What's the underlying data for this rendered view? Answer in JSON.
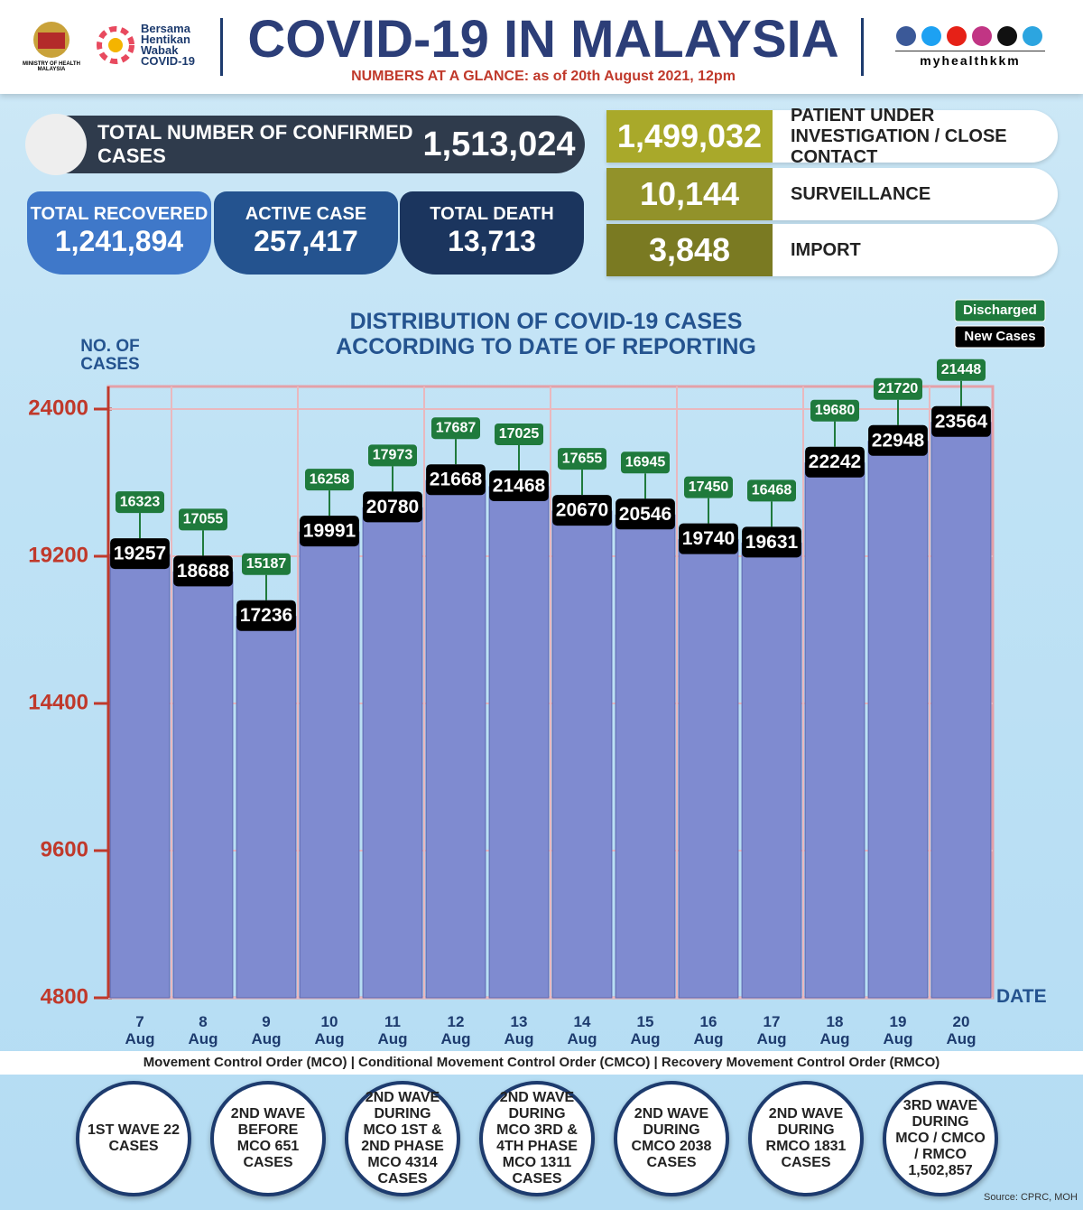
{
  "header": {
    "ministry": "MINISTRY OF HEALTH MALAYSIA",
    "campaign": "Bersama Hentikan Wabak COVID-19",
    "title": "COVID-19 IN MALAYSIA",
    "subtitle_lead": "NUMBERS AT A GLANCE:",
    "subtitle_date": "as of 20th August 2021, 12pm",
    "social": "myhealthkkm"
  },
  "summary": {
    "confirmed": {
      "label": "TOTAL NUMBER OF CONFIRMED CASES",
      "value": "1,513,024"
    },
    "recovered": {
      "label": "TOTAL RECOVERED",
      "value": "1,241,894"
    },
    "active": {
      "label": "ACTIVE CASE",
      "value": "257,417"
    },
    "death": {
      "label": "TOTAL DEATH",
      "value": "13,713"
    }
  },
  "breakdown": [
    {
      "value": "1,499,032",
      "label": "PATIENT UNDER INVESTIGATION / CLOSE CONTACT"
    },
    {
      "value": "10,144",
      "label": "SURVEILLANCE"
    },
    {
      "value": "3,848",
      "label": "IMPORT"
    }
  ],
  "chart_data": {
    "type": "bar",
    "title": "DISTRIBUTION OF COVID-19 CASES ACCORDING TO DATE OF REPORTING",
    "y_label": "NO. OF CASES",
    "x_label": "DATE",
    "categories": [
      "7 Aug",
      "8 Aug",
      "9 Aug",
      "10 Aug",
      "11 Aug",
      "12 Aug",
      "13 Aug",
      "14 Aug",
      "15 Aug",
      "16 Aug",
      "17 Aug",
      "18 Aug",
      "19 Aug",
      "20 Aug"
    ],
    "series": [
      {
        "name": "Discharged",
        "color": "#1f7a3c",
        "mark": "tag",
        "values": [
          16323,
          17055,
          15187,
          16258,
          17973,
          17687,
          17025,
          17655,
          16945,
          17450,
          16468,
          19680,
          21720,
          21448
        ]
      },
      {
        "name": "New Cases",
        "color": "#7f8bd0",
        "mark": "bar",
        "values": [
          19257,
          18688,
          17236,
          19991,
          20780,
          21668,
          21468,
          20670,
          20546,
          19740,
          19631,
          22242,
          22948,
          23564
        ]
      }
    ],
    "ylim": [
      4800,
      24000
    ],
    "yticks": [
      4800,
      9600,
      14400,
      19200,
      24000
    ],
    "grid": true
  },
  "footer": {
    "orders": "Movement Control Order (MCO) | Conditional Movement Control Order (CMCO) | Recovery Movement Control Order (RMCO)",
    "waves": [
      "1ST WAVE 22 CASES",
      "2ND WAVE BEFORE MCO 651 CASES",
      "2ND WAVE DURING MCO 1ST & 2ND PHASE MCO 4314 CASES",
      "2ND WAVE DURING MCO 3RD & 4TH PHASE MCO 1311 CASES",
      "2ND WAVE DURING CMCO 2038 CASES",
      "2ND WAVE DURING RMCO 1831 CASES",
      "3RD WAVE DURING MCO / CMCO / RMCO 1,502,857"
    ],
    "source": "Source: CPRC, MOH"
  }
}
